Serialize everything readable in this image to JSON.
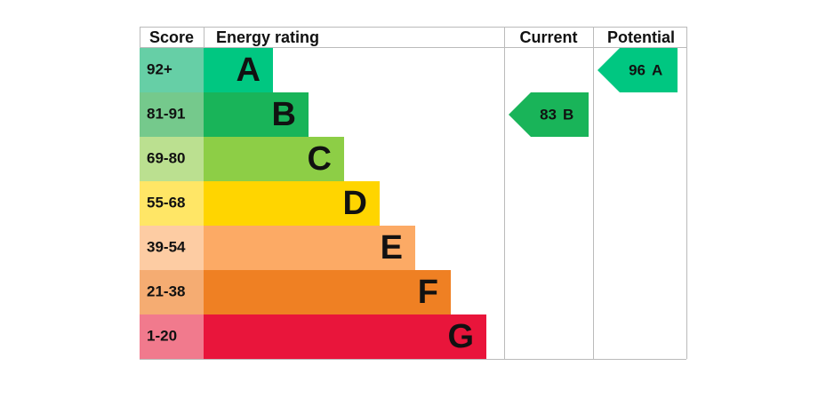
{
  "chart_data": {
    "type": "epc",
    "headers": [
      "Score",
      "Energy rating",
      "Current",
      "Potential"
    ],
    "bands": [
      {
        "score": "92+",
        "letter": "A",
        "color": "#00c781",
        "score_color": "#66cfa6"
      },
      {
        "score": "81-91",
        "letter": "B",
        "color": "#19b459",
        "score_color": "#75c98c"
      },
      {
        "score": "69-80",
        "letter": "C",
        "color": "#8dce46",
        "score_color": "#bbe090"
      },
      {
        "score": "55-68",
        "letter": "D",
        "color": "#ffd500",
        "score_color": "#ffe666"
      },
      {
        "score": "39-54",
        "letter": "E",
        "color": "#fcaa65",
        "score_color": "#fdcca3"
      },
      {
        "score": "21-38",
        "letter": "F",
        "color": "#ef8023",
        "score_color": "#f5ac72"
      },
      {
        "score": "1-20",
        "letter": "G",
        "color": "#e9153b",
        "score_color": "#f17a8d"
      }
    ],
    "current": {
      "value": 83,
      "letter": "B"
    },
    "potential": {
      "value": 96,
      "letter": "A"
    }
  }
}
